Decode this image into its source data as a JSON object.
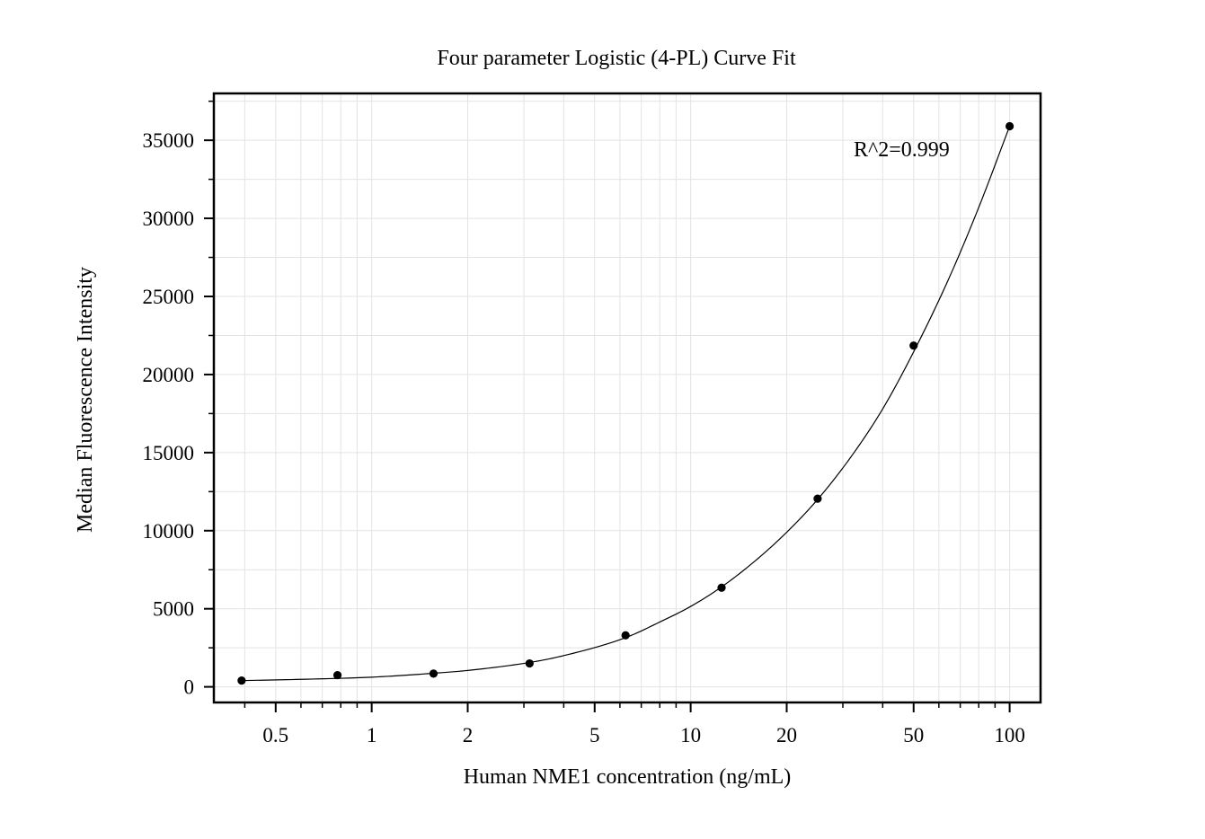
{
  "chart_data": {
    "type": "scatter",
    "title": "Four parameter Logistic (4-PL) Curve Fit",
    "xlabel": "Human NME1 concentration (ng/mL)",
    "ylabel": "Median Fluorescence Intensity",
    "x_scale": "log",
    "xlim": [
      0.32,
      125
    ],
    "ylim": [
      -1000,
      38000
    ],
    "x_ticks": [
      0.5,
      1,
      2,
      5,
      10,
      20,
      50,
      100
    ],
    "x_tick_labels": [
      "0.5",
      "1",
      "2",
      "5",
      "10",
      "20",
      "50",
      "100"
    ],
    "y_ticks": [
      0,
      5000,
      10000,
      15000,
      20000,
      25000,
      30000,
      35000
    ],
    "y_tick_labels": [
      "0",
      "5000",
      "10000",
      "15000",
      "20000",
      "25000",
      "30000",
      "35000"
    ],
    "grid": true,
    "annotation": "R^2=0.999",
    "series": [
      {
        "x": [
          0.391,
          0.781,
          1.5625,
          3.125,
          6.25,
          12.5,
          25,
          50,
          100
        ],
        "y": [
          400,
          750,
          850,
          1500,
          3300,
          6350,
          12050,
          21850,
          35900
        ]
      }
    ],
    "fit_curve": {
      "x": [
        0.391,
        0.6,
        1,
        1.5625,
        2,
        3.125,
        4,
        6.25,
        8,
        10,
        12.5,
        16,
        20,
        25,
        32,
        40,
        50,
        64,
        80,
        100
      ],
      "y": [
        400,
        480,
        620,
        870,
        1050,
        1560,
        2000,
        3150,
        4150,
        5150,
        6400,
        8100,
        9900,
        12000,
        14800,
        17800,
        21450,
        26000,
        30700,
        35900
      ]
    },
    "colors": {
      "marker": "#000000",
      "curve": "#000000",
      "grid": "#e3e3e3",
      "axis": "#000000"
    }
  }
}
